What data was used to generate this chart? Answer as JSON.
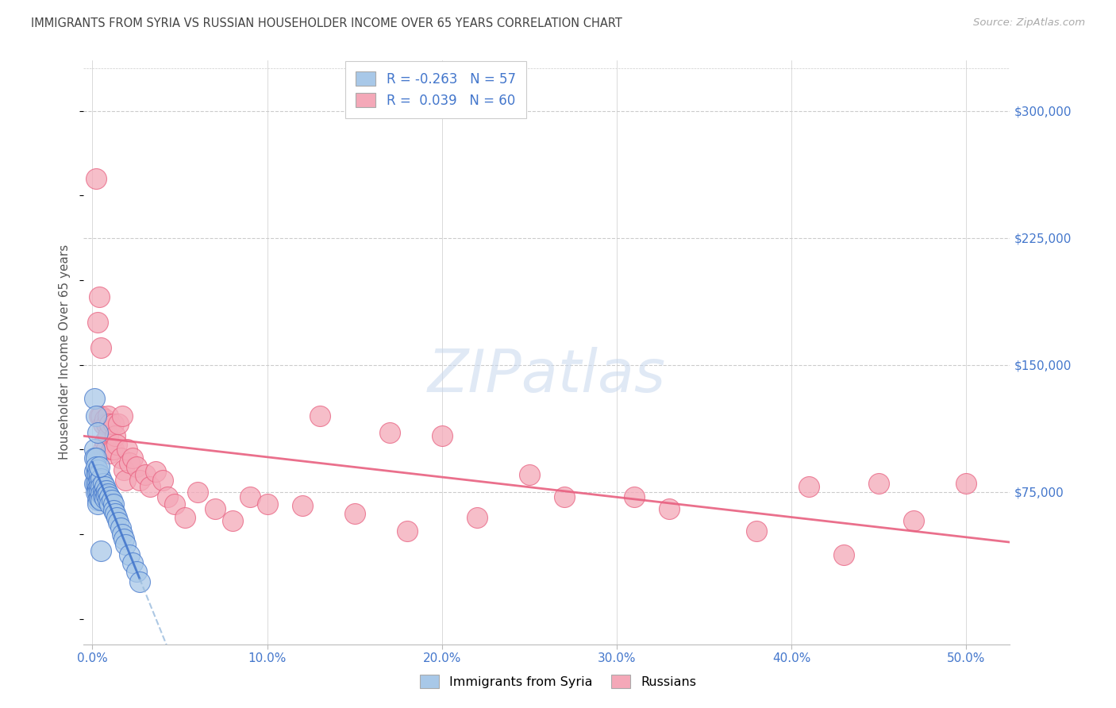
{
  "title": "IMMIGRANTS FROM SYRIA VS RUSSIAN HOUSEHOLDER INCOME OVER 65 YEARS CORRELATION CHART",
  "source": "Source: ZipAtlas.com",
  "xlabel_ticks": [
    "0.0%",
    "10.0%",
    "20.0%",
    "30.0%",
    "40.0%",
    "50.0%"
  ],
  "xlabel_tick_vals": [
    0.0,
    0.1,
    0.2,
    0.3,
    0.4,
    0.5
  ],
  "ylabel": "Householder Income Over 65 years",
  "ylabel_ticks": [
    "$75,000",
    "$150,000",
    "$225,000",
    "$300,000"
  ],
  "ylabel_tick_vals": [
    75000,
    150000,
    225000,
    300000
  ],
  "ylim": [
    -15000,
    330000
  ],
  "xlim": [
    -0.005,
    0.525
  ],
  "color_syria": "#a8c8e8",
  "color_russia": "#f4a8b8",
  "color_syria_line_solid": "#4477cc",
  "color_syria_line_dash": "#99bbdd",
  "color_russia_line": "#e86080",
  "background_color": "#ffffff",
  "grid_color": "#cccccc",
  "axis_label_color": "#4477cc",
  "title_color": "#444444",
  "source_color": "#aaaaaa",
  "syria_x": [
    0.001,
    0.001,
    0.001,
    0.001,
    0.002,
    0.002,
    0.002,
    0.002,
    0.002,
    0.003,
    0.003,
    0.003,
    0.003,
    0.003,
    0.003,
    0.003,
    0.004,
    0.004,
    0.004,
    0.004,
    0.004,
    0.005,
    0.005,
    0.005,
    0.005,
    0.006,
    0.006,
    0.006,
    0.007,
    0.007,
    0.007,
    0.008,
    0.008,
    0.009,
    0.009,
    0.01,
    0.01,
    0.011,
    0.012,
    0.012,
    0.013,
    0.014,
    0.015,
    0.016,
    0.017,
    0.018,
    0.019,
    0.021,
    0.023,
    0.025,
    0.027,
    0.001,
    0.002,
    0.003,
    0.004,
    0.005
  ],
  "syria_y": [
    100000,
    95000,
    87000,
    80000,
    95000,
    90000,
    85000,
    80000,
    75000,
    88000,
    85000,
    80000,
    77000,
    75000,
    70000,
    68000,
    85000,
    82000,
    78000,
    75000,
    71000,
    83000,
    78000,
    74000,
    70000,
    80000,
    76000,
    73000,
    78000,
    74000,
    71000,
    76000,
    73000,
    74000,
    70000,
    72000,
    68000,
    70000,
    68000,
    64000,
    62000,
    60000,
    57000,
    54000,
    50000,
    47000,
    44000,
    38000,
    33000,
    28000,
    22000,
    130000,
    120000,
    110000,
    90000,
    40000
  ],
  "russia_x": [
    0.002,
    0.003,
    0.004,
    0.004,
    0.005,
    0.005,
    0.006,
    0.006,
    0.007,
    0.007,
    0.008,
    0.008,
    0.009,
    0.009,
    0.01,
    0.01,
    0.011,
    0.012,
    0.012,
    0.013,
    0.014,
    0.015,
    0.016,
    0.017,
    0.018,
    0.019,
    0.02,
    0.021,
    0.023,
    0.025,
    0.027,
    0.03,
    0.033,
    0.036,
    0.04,
    0.043,
    0.047,
    0.053,
    0.06,
    0.07,
    0.08,
    0.09,
    0.1,
    0.12,
    0.15,
    0.18,
    0.22,
    0.27,
    0.33,
    0.38,
    0.43,
    0.47,
    0.5,
    0.13,
    0.17,
    0.25,
    0.31,
    0.2,
    0.41,
    0.45
  ],
  "russia_y": [
    260000,
    175000,
    190000,
    120000,
    160000,
    120000,
    115000,
    100000,
    118000,
    105000,
    115000,
    100000,
    120000,
    108000,
    115000,
    98000,
    100000,
    115000,
    100000,
    108000,
    103000,
    115000,
    95000,
    120000,
    88000,
    82000,
    100000,
    92000,
    95000,
    90000,
    82000,
    85000,
    78000,
    87000,
    82000,
    72000,
    68000,
    60000,
    75000,
    65000,
    58000,
    72000,
    68000,
    67000,
    62000,
    52000,
    60000,
    72000,
    65000,
    52000,
    38000,
    58000,
    80000,
    120000,
    110000,
    85000,
    72000,
    108000,
    78000,
    80000
  ]
}
